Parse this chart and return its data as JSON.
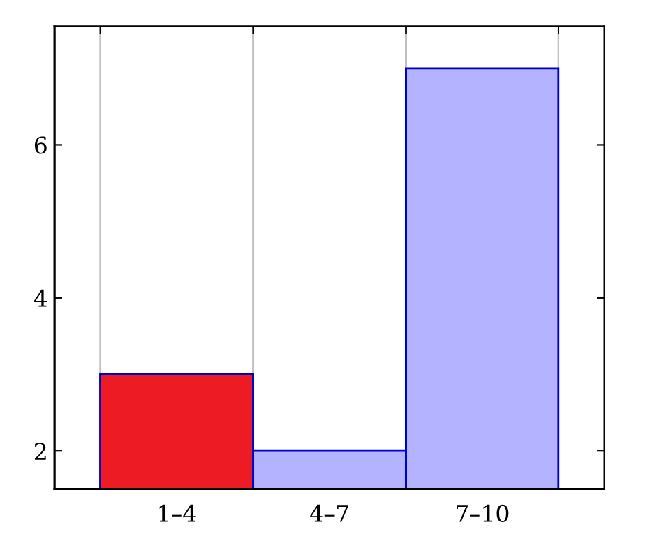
{
  "chart_data": {
    "type": "bar",
    "categories": [
      "1–4",
      "4–7",
      "7–10"
    ],
    "values": [
      3,
      2,
      7
    ],
    "colors": [
      "#ed1c24",
      "#b3b3ff",
      "#b3b3ff"
    ],
    "ylim": [
      1.5,
      7.55
    ],
    "yticks": [
      2,
      4,
      6
    ],
    "grid": "x"
  }
}
